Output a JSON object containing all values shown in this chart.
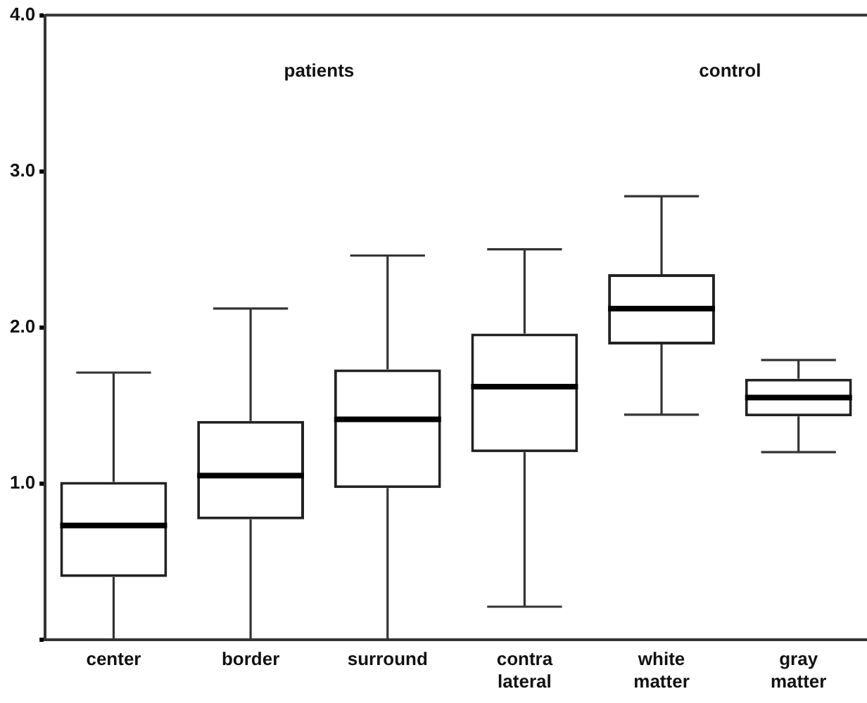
{
  "chart_data": {
    "type": "box",
    "categories": [
      "center",
      "border",
      "surround",
      "contra lateral",
      "white matter",
      "gray matter"
    ],
    "boxes": [
      {
        "low": 0,
        "q1": 0.4,
        "median": 0.73,
        "q3": 1.01,
        "high": 1.71
      },
      {
        "low": 0,
        "q1": 0.77,
        "median": 1.05,
        "q3": 1.4,
        "high": 2.12
      },
      {
        "low": 0,
        "q1": 0.97,
        "median": 1.41,
        "q3": 1.73,
        "high": 2.46
      },
      {
        "low": 0.21,
        "q1": 1.2,
        "median": 1.62,
        "q3": 1.96,
        "high": 2.5
      },
      {
        "low": 1.44,
        "q1": 1.89,
        "median": 2.12,
        "q3": 2.34,
        "high": 2.84
      },
      {
        "low": 1.2,
        "q1": 1.43,
        "median": 1.55,
        "q3": 1.67,
        "high": 1.79
      }
    ],
    "ylim": [
      0,
      4
    ],
    "yticks": [
      {
        "value": 0,
        "label": null
      },
      {
        "value": 1,
        "label": "1.0"
      },
      {
        "value": 2,
        "label": "2.0"
      },
      {
        "value": 3,
        "label": "3.0"
      },
      {
        "value": 4,
        "label": "4.0"
      }
    ],
    "annotations": [
      "patients",
      "control"
    ],
    "grid": false
  }
}
